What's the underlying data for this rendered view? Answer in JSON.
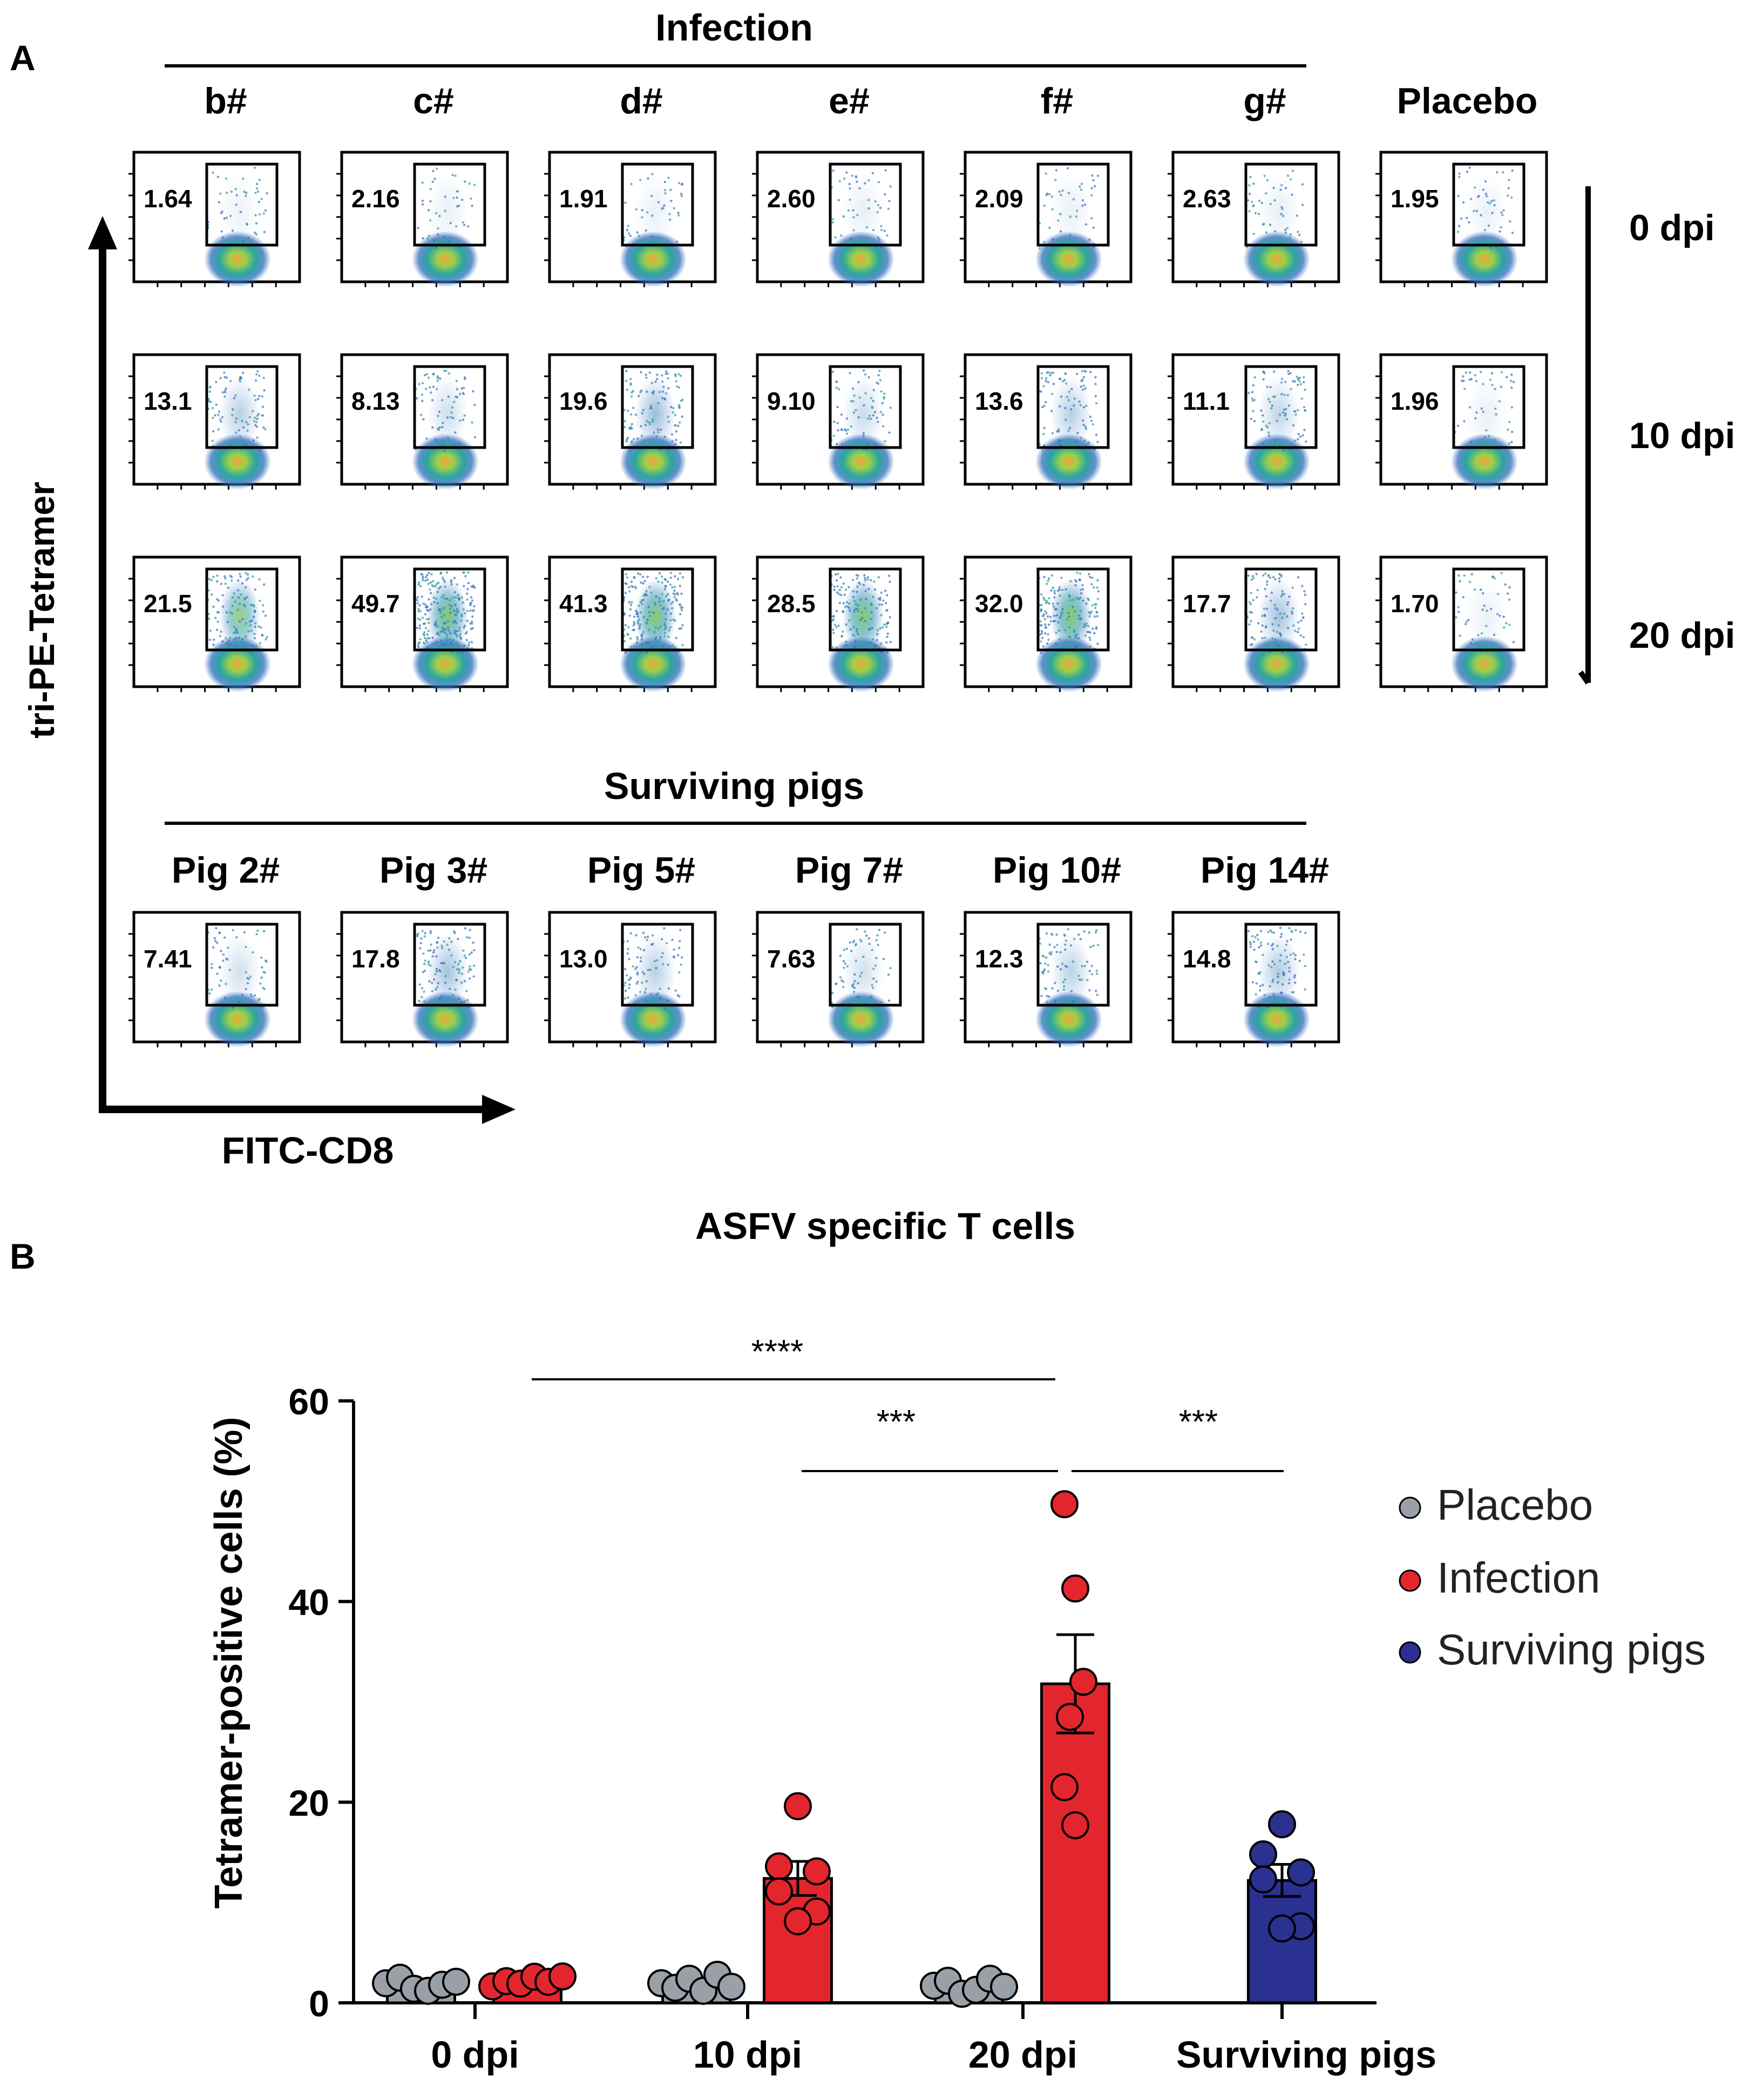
{
  "panel_a": {
    "label": "A",
    "infection_header": "Infection",
    "surviving_header": "Surviving pigs",
    "columns": [
      "b#",
      "c#",
      "d#",
      "e#",
      "f#",
      "g#",
      "Placebo"
    ],
    "time_labels": [
      "0  dpi",
      "10 dpi",
      "20 dpi"
    ],
    "y_axis_label": "tri-PE-Tetramer",
    "x_axis_label": "FITC-CD8",
    "gate_values": [
      [
        "1.64",
        "2.16",
        "1.91",
        "2.60",
        "2.09",
        "2.63",
        "1.95"
      ],
      [
        "13.1",
        "8.13",
        "19.6",
        "9.10",
        "13.6",
        "11.1",
        "1.96"
      ],
      [
        "21.5",
        "49.7",
        "41.3",
        "28.5",
        "32.0",
        "17.7",
        "1.70"
      ]
    ],
    "surviving_columns": [
      "Pig 2#",
      "Pig 3#",
      "Pig 5#",
      "Pig 7#",
      "Pig 10#",
      "Pig 14#"
    ],
    "surviving_values": [
      "7.41",
      "17.8",
      "13.0",
      "7.63",
      "12.3",
      "14.8"
    ]
  },
  "colors": {
    "placebo": "#9aa0a8",
    "infection": "#e3262d",
    "surviving": "#2a3190",
    "axis": "#000000"
  },
  "chart_data": {
    "type": "bar",
    "label": "B",
    "title": "ASFV specific T cells",
    "ylabel": "Tetramer-positive cells (%)",
    "xlabel": "",
    "ylim": [
      0,
      60
    ],
    "yticks": [
      0,
      20,
      40,
      60
    ],
    "categories": [
      "0 dpi",
      "10 dpi",
      "20 dpi",
      "Surviving pigs"
    ],
    "legend_position": "right",
    "series": [
      {
        "name": "Placebo",
        "color_key": "placebo",
        "bars": [
          {
            "category": "0 dpi",
            "mean": 2.0,
            "sem": 0.3,
            "points": [
              1.95,
              2.5,
              1.4,
              1.2,
              1.8,
              2.1
            ]
          },
          {
            "category": "10 dpi",
            "mean": 1.96,
            "sem": 0.3,
            "points": [
              1.96,
              1.5,
              2.4,
              1.2,
              2.8,
              1.6
            ]
          },
          {
            "category": "20 dpi",
            "mean": 1.7,
            "sem": 0.3,
            "points": [
              1.7,
              2.2,
              0.9,
              1.3,
              2.4,
              1.6
            ]
          }
        ]
      },
      {
        "name": "Infection",
        "color_key": "infection",
        "bars": [
          {
            "category": "0 dpi",
            "mean": 2.2,
            "sem": 0.15,
            "points": [
              1.64,
              2.16,
              1.91,
              2.6,
              2.09,
              2.63
            ]
          },
          {
            "category": "10 dpi",
            "mean": 12.4,
            "sem": 1.7,
            "points": [
              19.6,
              13.6,
              13.1,
              11.1,
              9.1,
              8.13
            ]
          },
          {
            "category": "20 dpi",
            "mean": 31.8,
            "sem": 4.9,
            "points": [
              49.7,
              41.3,
              32.0,
              28.5,
              21.5,
              17.7
            ]
          }
        ]
      },
      {
        "name": "Surviving pigs",
        "color_key": "surviving",
        "bars": [
          {
            "category": "Surviving pigs",
            "mean": 12.2,
            "sem": 1.6,
            "points": [
              17.8,
              14.8,
              13.0,
              12.3,
              7.63,
              7.41
            ]
          }
        ]
      }
    ],
    "significance": [
      {
        "from": "Infection 0 dpi",
        "to": "Infection 20 dpi",
        "label": "****"
      },
      {
        "from": "Infection 10 dpi",
        "to": "Infection 20 dpi",
        "label": "***"
      },
      {
        "from": "Infection 20 dpi",
        "to": "Surviving pigs",
        "label": "***"
      }
    ]
  }
}
